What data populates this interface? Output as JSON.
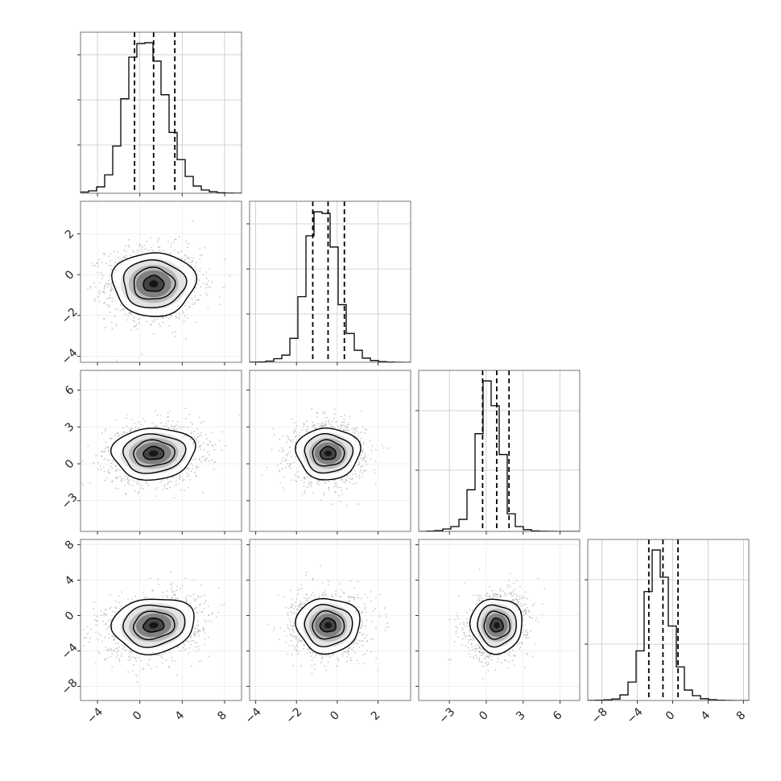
{
  "chart_data": {
    "type": "corner",
    "description_parameters": 4,
    "histogram_bins": 20,
    "quantile_lines": [
      0.16,
      0.5,
      0.84
    ],
    "grid": true,
    "colors": {
      "line": "#000000",
      "grid": "#c8c8c8",
      "scatter": "#9a9a9a",
      "frame": "#555555"
    },
    "parameters": [
      {
        "id": "p1",
        "mean": 1.3,
        "std": 1.95,
        "range": [
          -5.6,
          9.6
        ],
        "ticks": [
          -4,
          0,
          4,
          8
        ],
        "tick_labels": [
          "−4",
          "0",
          "4",
          "8"
        ],
        "quantiles": [
          -0.5,
          1.3,
          3.3
        ],
        "hist_counts": [
          15,
          30,
          80,
          230,
          590,
          1180,
          1700,
          1870,
          1880,
          1650,
          1230,
          760,
          420,
          210,
          90,
          40,
          18,
          6,
          2,
          1
        ]
      },
      {
        "id": "p2",
        "mean": -0.45,
        "std": 0.78,
        "range": [
          -4.3,
          3.6
        ],
        "ticks": [
          -4,
          -2,
          0,
          2
        ],
        "tick_labels": [
          "−4",
          "−2",
          "0",
          "2"
        ],
        "quantiles": [
          -1.2,
          -0.45,
          0.35
        ],
        "hist_counts": [
          2,
          5,
          15,
          45,
          90,
          300,
          820,
          1580,
          1880,
          1860,
          1440,
          720,
          360,
          150,
          52,
          22,
          8,
          3,
          1,
          0
        ]
      },
      {
        "id": "p3",
        "mean": 0.85,
        "std": 1.05,
        "range": [
          -5.5,
          7.6
        ],
        "ticks": [
          -3,
          0,
          3,
          6
        ],
        "tick_labels": [
          "−3",
          "0",
          "3",
          "6"
        ],
        "quantiles": [
          -0.3,
          0.85,
          1.85
        ],
        "hist_counts": [
          0,
          4,
          10,
          30,
          60,
          150,
          520,
          1220,
          1880,
          1570,
          960,
          220,
          60,
          22,
          6,
          2,
          1,
          0,
          0,
          0
        ]
      },
      {
        "id": "p4",
        "mean": -1.1,
        "std": 1.55,
        "range": [
          -9.6,
          8.6
        ],
        "ticks": [
          -8,
          -4,
          0,
          4,
          8
        ],
        "tick_labels": [
          "−8",
          "−4",
          "0",
          "4",
          "8"
        ],
        "quantiles": [
          -2.7,
          -1.1,
          0.6
        ],
        "hist_counts": [
          1,
          3,
          8,
          18,
          70,
          230,
          620,
          1360,
          1880,
          1540,
          930,
          420,
          130,
          60,
          22,
          10,
          4,
          1,
          0,
          0
        ]
      }
    ],
    "pairs": [
      {
        "x": "p1",
        "y": "p2",
        "correlation": 0.0
      },
      {
        "x": "p1",
        "y": "p3",
        "correlation": 0.1
      },
      {
        "x": "p2",
        "y": "p3",
        "correlation": 0.0
      },
      {
        "x": "p1",
        "y": "p4",
        "correlation": 0.2
      },
      {
        "x": "p2",
        "y": "p4",
        "correlation": 0.0
      },
      {
        "x": "p3",
        "y": "p4",
        "correlation": 0.2
      }
    ],
    "contour_levels_sigma": [
      0.5,
      1.0,
      1.5,
      2.0
    ]
  }
}
